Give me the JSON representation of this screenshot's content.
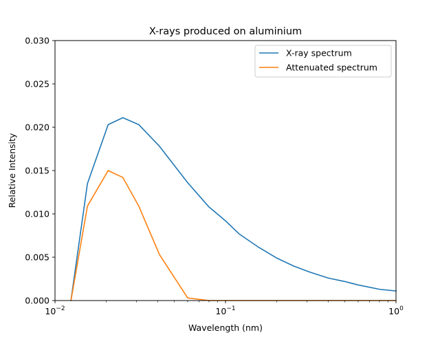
{
  "chart_data": {
    "type": "line",
    "title": "X-rays produced on aluminium",
    "xlabel": "Wavelength (nm)",
    "ylabel": "Relative Intensity",
    "xscale": "log",
    "xlim": [
      0.01,
      1
    ],
    "ylim": [
      0,
      0.03
    ],
    "x_ticks": [
      {
        "value": 0.01,
        "base": "10",
        "exp": "−2"
      },
      {
        "value": 0.1,
        "base": "10",
        "exp": "−1"
      },
      {
        "value": 1,
        "base": "10",
        "exp": "0"
      }
    ],
    "y_ticks": [
      {
        "value": 0.0,
        "label": "0.000"
      },
      {
        "value": 0.005,
        "label": "0.005"
      },
      {
        "value": 0.01,
        "label": "0.010"
      },
      {
        "value": 0.015,
        "label": "0.015"
      },
      {
        "value": 0.02,
        "label": "0.020"
      },
      {
        "value": 0.025,
        "label": "0.025"
      },
      {
        "value": 0.03,
        "label": "0.030"
      }
    ],
    "grid": false,
    "legend_position": "top-right",
    "series": [
      {
        "name": "X-ray spectrum",
        "color": "#1f77b4",
        "points": [
          [
            0.0124,
            0.0
          ],
          [
            0.0155,
            0.0135
          ],
          [
            0.0205,
            0.0203
          ],
          [
            0.025,
            0.0211
          ],
          [
            0.031,
            0.0203
          ],
          [
            0.041,
            0.0178
          ],
          [
            0.06,
            0.0136
          ],
          [
            0.08,
            0.0108
          ],
          [
            0.1,
            0.0092
          ],
          [
            0.12,
            0.0077
          ],
          [
            0.155,
            0.0062
          ],
          [
            0.2,
            0.0049
          ],
          [
            0.25,
            0.004
          ],
          [
            0.31,
            0.0033
          ],
          [
            0.4,
            0.0026
          ],
          [
            0.5,
            0.0022
          ],
          [
            0.6,
            0.0018
          ],
          [
            0.8,
            0.0013
          ],
          [
            1.0,
            0.0011
          ]
        ]
      },
      {
        "name": "Attenuated spectrum",
        "color": "#ff7f0e",
        "points": [
          [
            0.0124,
            0.0
          ],
          [
            0.0155,
            0.0109
          ],
          [
            0.0205,
            0.015
          ],
          [
            0.025,
            0.0142
          ],
          [
            0.031,
            0.0109
          ],
          [
            0.041,
            0.0053
          ],
          [
            0.06,
            0.0003
          ],
          [
            0.08,
            0.0
          ],
          [
            0.1,
            0.0
          ],
          [
            0.2,
            0.0
          ],
          [
            0.4,
            0.0
          ],
          [
            0.6,
            0.0
          ],
          [
            0.8,
            0.0
          ],
          [
            1.0,
            0.0
          ]
        ]
      }
    ]
  }
}
